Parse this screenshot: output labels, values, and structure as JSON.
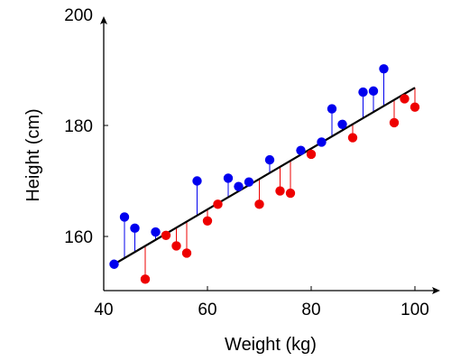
{
  "chart_data": {
    "type": "scatter",
    "title": "",
    "xlabel": "Weight (kg)",
    "ylabel": "Height (cm)",
    "xlim": [
      40,
      102
    ],
    "ylim": [
      150,
      200
    ],
    "xticks": [
      40,
      60,
      80,
      100
    ],
    "yticks": [
      160,
      180,
      200
    ],
    "grid": false,
    "legend": "none",
    "regression_line": {
      "from": {
        "x": 42,
        "y": 155.0
      },
      "to": {
        "x": 100,
        "y": 186.8
      },
      "color": "#000000"
    },
    "colors": {
      "above_line": "#0000ee",
      "below_line": "#ee0000",
      "fit_line": "#000000"
    },
    "points": [
      {
        "x": 42,
        "y": 155.0
      },
      {
        "x": 44,
        "y": 163.5
      },
      {
        "x": 46,
        "y": 161.5
      },
      {
        "x": 48,
        "y": 152.3
      },
      {
        "x": 50,
        "y": 160.8
      },
      {
        "x": 52,
        "y": 160.2
      },
      {
        "x": 54,
        "y": 158.3
      },
      {
        "x": 56,
        "y": 157.0
      },
      {
        "x": 58,
        "y": 170.0
      },
      {
        "x": 60,
        "y": 162.8
      },
      {
        "x": 62,
        "y": 165.8
      },
      {
        "x": 64,
        "y": 170.5
      },
      {
        "x": 66,
        "y": 169.0
      },
      {
        "x": 68,
        "y": 169.8
      },
      {
        "x": 70,
        "y": 165.8
      },
      {
        "x": 72,
        "y": 173.8
      },
      {
        "x": 74,
        "y": 168.2
      },
      {
        "x": 76,
        "y": 167.8
      },
      {
        "x": 78,
        "y": 175.5
      },
      {
        "x": 80,
        "y": 174.8
      },
      {
        "x": 82,
        "y": 177.0
      },
      {
        "x": 84,
        "y": 183.0
      },
      {
        "x": 86,
        "y": 180.2
      },
      {
        "x": 88,
        "y": 177.8
      },
      {
        "x": 90,
        "y": 186.0
      },
      {
        "x": 92,
        "y": 186.2
      },
      {
        "x": 94,
        "y": 190.2
      },
      {
        "x": 96,
        "y": 180.5
      },
      {
        "x": 98,
        "y": 184.8
      },
      {
        "x": 100,
        "y": 183.3
      }
    ]
  }
}
